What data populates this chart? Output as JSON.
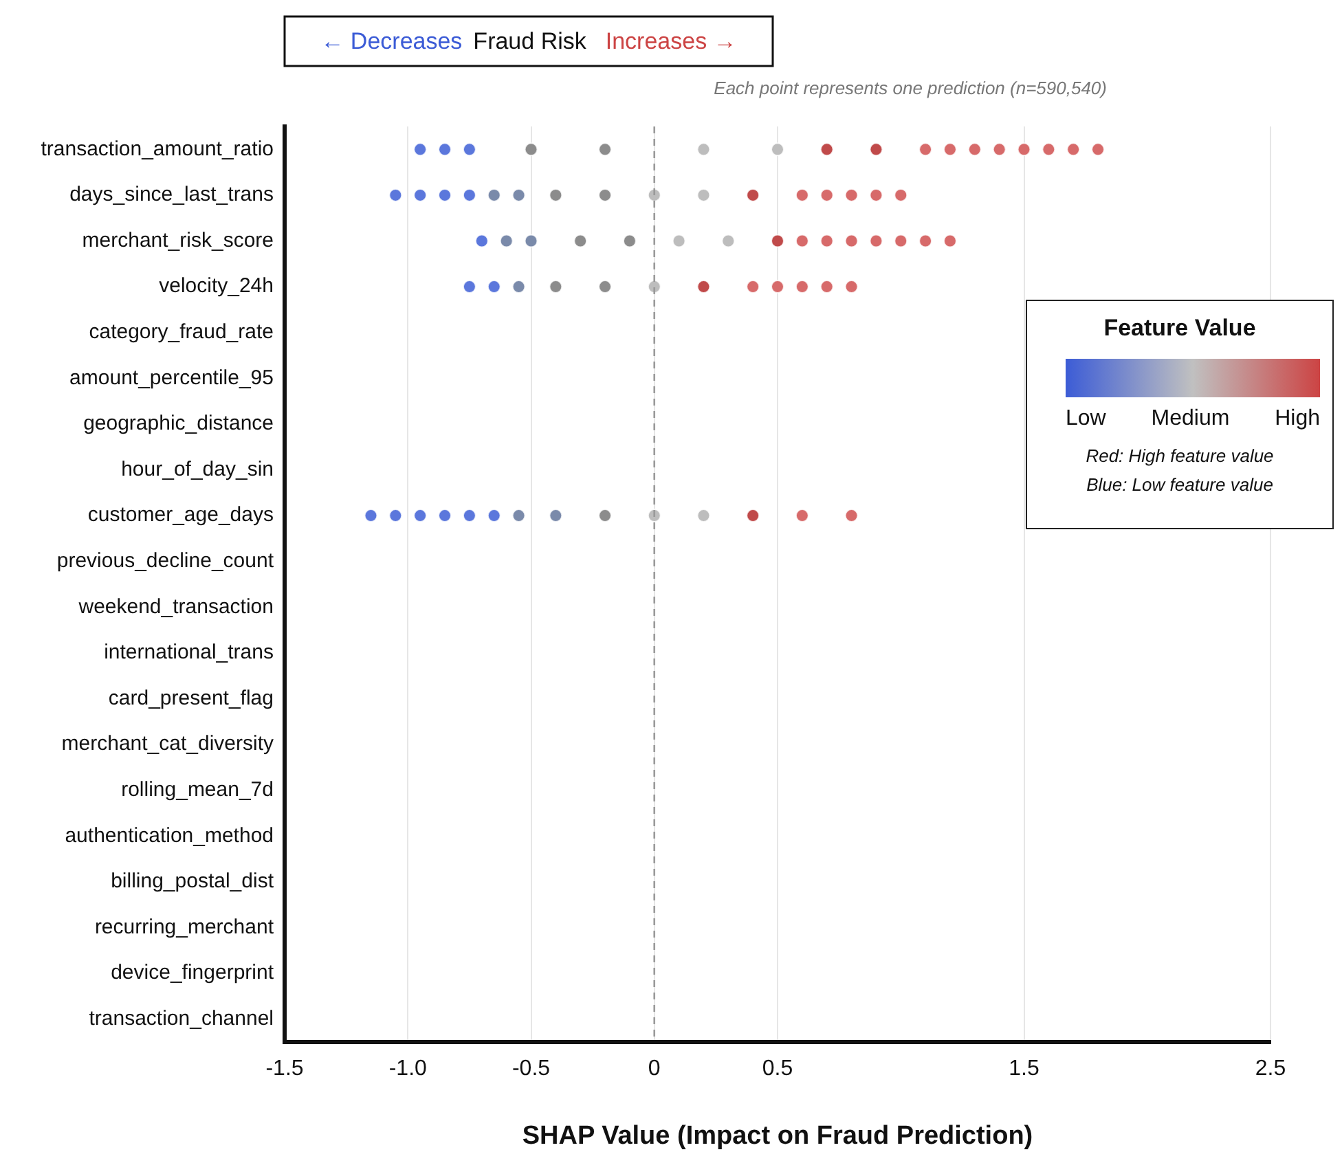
{
  "chart_data": {
    "type": "scatter",
    "orientation": "horizontal",
    "xlabel": "SHAP Value (Impact on Fraud Prediction)",
    "categories": [
      "transaction_amount_ratio",
      "days_since_last_trans",
      "merchant_risk_score",
      "velocity_24h",
      "category_fraud_rate",
      "amount_percentile_95",
      "geographic_distance",
      "hour_of_day_sin",
      "customer_age_days",
      "previous_decline_count",
      "weekend_transaction",
      "international_trans",
      "card_present_flag",
      "merchant_cat_diversity",
      "rolling_mean_7d",
      "authentication_method",
      "billing_postal_dist",
      "recurring_merchant",
      "device_fingerprint",
      "transaction_channel"
    ],
    "series": [
      {
        "values": [
          -0.95,
          -0.85,
          -0.75,
          -0.5,
          -0.2,
          0.2,
          0.5,
          0.7,
          0.9,
          1.1,
          1.2,
          1.3,
          1.4,
          1.5,
          1.6,
          1.7,
          1.8
        ],
        "x": [
          "transaction_amount_ratio",
          "transaction_amount_ratio",
          "transaction_amount_ratio",
          "transaction_amount_ratio",
          "transaction_amount_ratio",
          "transaction_amount_ratio",
          "transaction_amount_ratio",
          "transaction_amount_ratio",
          "transaction_amount_ratio",
          "transaction_amount_ratio",
          "transaction_amount_ratio",
          "transaction_amount_ratio",
          "transaction_amount_ratio",
          "transaction_amount_ratio",
          "transaction_amount_ratio",
          "transaction_amount_ratio",
          "transaction_amount_ratio"
        ],
        "colors": [
          "#5b77dc",
          "#5b77dc",
          "#5b77dc",
          "#8c8c8c",
          "#8c8c8c",
          "#bdbdbd",
          "#bdbdbd",
          "#c04a4a",
          "#c04a4a",
          "#d76a6a",
          "#d76a6a",
          "#d76a6a",
          "#d76a6a",
          "#d76a6a",
          "#d76a6a",
          "#d76a6a",
          "#d76a6a"
        ]
      },
      {
        "values": [
          -1.05,
          -0.95,
          -0.85,
          -0.75,
          -0.65,
          -0.55,
          -0.4,
          -0.2,
          0,
          0.2,
          0.4,
          0.6,
          0.7,
          0.8,
          0.9,
          1.0
        ],
        "x": [
          "days_since_last_trans",
          "days_since_last_trans",
          "days_since_last_trans",
          "days_since_last_trans",
          "days_since_last_trans",
          "days_since_last_trans",
          "days_since_last_trans",
          "days_since_last_trans",
          "days_since_last_trans",
          "days_since_last_trans",
          "days_since_last_trans",
          "days_since_last_trans",
          "days_since_last_trans",
          "days_since_last_trans",
          "days_since_last_trans",
          "days_since_last_trans"
        ],
        "colors": [
          "#5b77dc",
          "#5b77dc",
          "#5b77dc",
          "#5b77dc",
          "#7a8aaa",
          "#7a8aaa",
          "#8c8c8c",
          "#8c8c8c",
          "#bdbdbd",
          "#bdbdbd",
          "#c04a4a",
          "#d76a6a",
          "#d76a6a",
          "#d76a6a",
          "#d76a6a",
          "#d76a6a"
        ]
      },
      {
        "values": [
          -0.7,
          -0.6,
          -0.5,
          -0.3,
          -0.1,
          0.1,
          0.3,
          0.5,
          0.6,
          0.7,
          0.8,
          0.9,
          1.0,
          1.1,
          1.2
        ],
        "x": [
          "merchant_risk_score",
          "merchant_risk_score",
          "merchant_risk_score",
          "merchant_risk_score",
          "merchant_risk_score",
          "merchant_risk_score",
          "merchant_risk_score",
          "merchant_risk_score",
          "merchant_risk_score",
          "merchant_risk_score",
          "merchant_risk_score",
          "merchant_risk_score",
          "merchant_risk_score",
          "merchant_risk_score",
          "merchant_risk_score"
        ],
        "colors": [
          "#5b77dc",
          "#7a8aaa",
          "#7a8aaa",
          "#8c8c8c",
          "#8c8c8c",
          "#bdbdbd",
          "#bdbdbd",
          "#c04a4a",
          "#d76a6a",
          "#d76a6a",
          "#d76a6a",
          "#d76a6a",
          "#d76a6a",
          "#d76a6a",
          "#d76a6a"
        ]
      },
      {
        "values": [
          -0.75,
          -0.65,
          -0.55,
          -0.4,
          -0.2,
          0,
          0.2,
          0.4,
          0.5,
          0.6,
          0.7,
          0.8
        ],
        "x": [
          "velocity_24h",
          "velocity_24h",
          "velocity_24h",
          "velocity_24h",
          "velocity_24h",
          "velocity_24h",
          "velocity_24h",
          "velocity_24h",
          "velocity_24h",
          "velocity_24h",
          "velocity_24h",
          "velocity_24h"
        ],
        "colors": [
          "#5b77dc",
          "#5b77dc",
          "#7a8aaa",
          "#8c8c8c",
          "#8c8c8c",
          "#bdbdbd",
          "#c04a4a",
          "#d76a6a",
          "#d76a6a",
          "#d76a6a",
          "#d76a6a",
          "#d76a6a"
        ]
      },
      {
        "values": [
          -1.15,
          -1.05,
          -0.95,
          -0.85,
          -0.75,
          -0.65,
          -0.55,
          -0.4,
          -0.2,
          0,
          0.2,
          0.4,
          0.6,
          0.8
        ],
        "x": [
          "customer_age_days",
          "customer_age_days",
          "customer_age_days",
          "customer_age_days",
          "customer_age_days",
          "customer_age_days",
          "customer_age_days",
          "customer_age_days",
          "customer_age_days",
          "customer_age_days",
          "customer_age_days",
          "customer_age_days",
          "customer_age_days",
          "customer_age_days"
        ],
        "colors": [
          "#5b77dc",
          "#5b77dc",
          "#5b77dc",
          "#5b77dc",
          "#5b77dc",
          "#5b77dc",
          "#7a8aaa",
          "#7a8aaa",
          "#8c8c8c",
          "#bdbdbd",
          "#bdbdbd",
          "#c04a4a",
          "#d76a6a",
          "#d76a6a"
        ]
      }
    ],
    "xlim": [
      -1.5,
      2.5
    ],
    "xticks": [
      {
        "value": -1.5,
        "label": "-1.5"
      },
      {
        "value": -1.0,
        "label": "-1.0"
      },
      {
        "value": -0.5,
        "label": "-0.5"
      },
      0,
      {
        "value": 0.5,
        "label": "0.5"
      },
      {
        "value": 1.5,
        "label": "1.5"
      },
      {
        "value": 2.5,
        "label": "2.5"
      }
    ],
    "grid": "x",
    "ref_lines": [
      {
        "axis": "x",
        "value": 0,
        "color": "#999999",
        "line_style": "dashed"
      }
    ],
    "legend": false,
    "marker": "circle",
    "annotations": [
      "← Decreases",
      "Fraud Risk",
      "Increases →",
      "Each point represents one prediction (n=590,540)",
      "Feature Value",
      "Low",
      "Medium",
      "High",
      "Red: High feature value",
      "Blue: Low feature value"
    ]
  }
}
